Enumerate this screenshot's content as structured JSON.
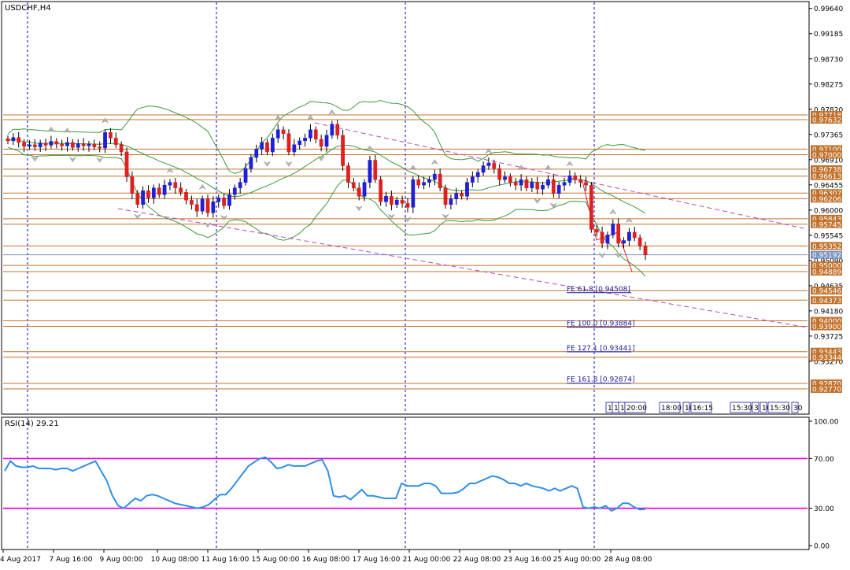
{
  "window": {
    "title": "USDCHF,H4"
  },
  "rsi_panel": {
    "title": "RSI(14) 29.21"
  },
  "colors": {
    "bull_candle": "#1f1fd6",
    "bear_candle": "#e01f1f",
    "bollinger": "#3c9a3c",
    "levels": "#c2732e",
    "channel": "#b548c8",
    "rsi_line": "#2f8fe6",
    "rsi_levels": "#e400e4",
    "vgrid": "#0000cc",
    "current_price": "#7a93c2"
  },
  "chart_data": [
    {
      "type": "candlestick",
      "symbol": "USDCHF",
      "timeframe": "H4",
      "title": "USDCHF,H4",
      "ylim": [
        0.9233,
        0.9975
      ],
      "y_ticks": [
        "0.99640",
        "0.99185",
        "0.98730",
        "0.98275",
        "0.97820",
        "0.97365",
        "0.96910",
        "0.96455",
        "0.96000",
        "0.95545",
        "0.95090",
        "0.94635",
        "0.94180",
        "0.93725",
        "0.93270"
      ],
      "x_tick_labels": [
        "4 Aug 2017",
        "7 Aug 16:00",
        "9 Aug 00:00",
        "10 Aug 08:00",
        "11 Aug 16:00",
        "15 Aug 00:00",
        "16 Aug 08:00",
        "17 Aug 16:00",
        "21 Aug 00:00",
        "22 Aug 08:00",
        "23 Aug 16:00",
        "25 Aug 00:00",
        "28 Aug 08:00"
      ],
      "candles_close_approx": [
        0.9725,
        0.9731,
        0.9722,
        0.9715,
        0.9718,
        0.9714,
        0.9721,
        0.9717,
        0.9724,
        0.9719,
        0.9716,
        0.9722,
        0.9713,
        0.972,
        0.9716,
        0.9719,
        0.9714,
        0.9712,
        0.974,
        0.973,
        0.9718,
        0.9705,
        0.966,
        0.963,
        0.961,
        0.9635,
        0.9622,
        0.964,
        0.9628,
        0.9645,
        0.965,
        0.964,
        0.9632,
        0.9618,
        0.961,
        0.9598,
        0.962,
        0.9595,
        0.9615,
        0.9622,
        0.9608,
        0.9628,
        0.964,
        0.965,
        0.9675,
        0.9695,
        0.971,
        0.9722,
        0.9705,
        0.973,
        0.9745,
        0.9738,
        0.9705,
        0.9718,
        0.9725,
        0.973,
        0.9745,
        0.9728,
        0.9715,
        0.9735,
        0.9755,
        0.9735,
        0.968,
        0.965,
        0.964,
        0.9625,
        0.965,
        0.969,
        0.9655,
        0.9615,
        0.9625,
        0.961,
        0.9618,
        0.9612,
        0.9605,
        0.9655,
        0.9645,
        0.965,
        0.9655,
        0.9665,
        0.964,
        0.961,
        0.962,
        0.963,
        0.9625,
        0.965,
        0.966,
        0.9668,
        0.968,
        0.9685,
        0.9675,
        0.9655,
        0.966,
        0.965,
        0.9645,
        0.9655,
        0.964,
        0.965,
        0.9638,
        0.9645,
        0.9655,
        0.963,
        0.9645,
        0.965,
        0.9662,
        0.9655,
        0.965,
        0.9645,
        0.9565,
        0.956,
        0.954,
        0.9555,
        0.9575,
        0.954,
        0.9545,
        0.956,
        0.955,
        0.9535,
        0.9519
      ],
      "current_price": "0.95192",
      "horizontal_levels": [
        "0.97718",
        "0.97632",
        "0.97100",
        "0.97000",
        "0.96738",
        "0.96613",
        "0.96307",
        "0.96206",
        "0.95843",
        "0.95745",
        "0.95352",
        "0.95192",
        "0.95000",
        "0.94889",
        "0.94546",
        "0.94373",
        "0.94000",
        "0.93900",
        "0.93443",
        "0.93344",
        "0.92870",
        "0.92770"
      ],
      "fibonacci_expansion": [
        "FE 61.8 [0.94508]",
        "FE 100.0 [0.93884]",
        "FE 127.1 [0.93441]",
        "FE 161.8 [0.92874]"
      ],
      "time_boxes": [
        "1",
        "1",
        "1",
        "20:00",
        "18:00",
        "10",
        "16:15",
        "15:30",
        "3",
        "10",
        "15:30",
        "30"
      ]
    },
    {
      "type": "line",
      "title": "RSI(14) 29.21",
      "series": [
        {
          "name": "RSI(14)",
          "values": [
            60,
            68,
            64,
            63,
            63,
            64,
            62,
            62,
            62,
            61,
            62,
            62,
            60,
            62,
            64,
            66,
            68,
            60,
            52,
            40,
            32,
            30,
            34,
            38,
            36,
            40,
            41,
            40,
            38,
            36,
            34,
            33,
            32,
            31,
            30,
            31,
            33,
            37,
            41,
            41,
            46,
            52,
            58,
            64,
            67,
            70,
            71,
            67,
            62,
            63,
            65,
            64,
            64,
            64,
            66,
            68,
            69,
            60,
            40,
            39,
            40,
            37,
            41,
            45,
            40,
            40,
            39,
            38,
            38,
            38,
            50,
            48,
            48,
            48,
            50,
            50,
            48,
            42,
            42,
            42,
            43,
            46,
            50,
            50,
            52,
            54,
            56,
            55,
            53,
            50,
            50,
            48,
            50,
            48,
            47,
            46,
            44,
            46,
            44,
            46,
            48,
            46,
            31,
            30,
            31,
            30,
            32,
            28,
            30,
            34,
            34,
            31,
            29,
            29.21
          ]
        }
      ],
      "ylim": [
        0,
        100
      ],
      "y_ticks": [
        "100.00",
        "70.00",
        "30.00",
        "0.00"
      ],
      "levels": [
        70,
        30
      ]
    }
  ]
}
